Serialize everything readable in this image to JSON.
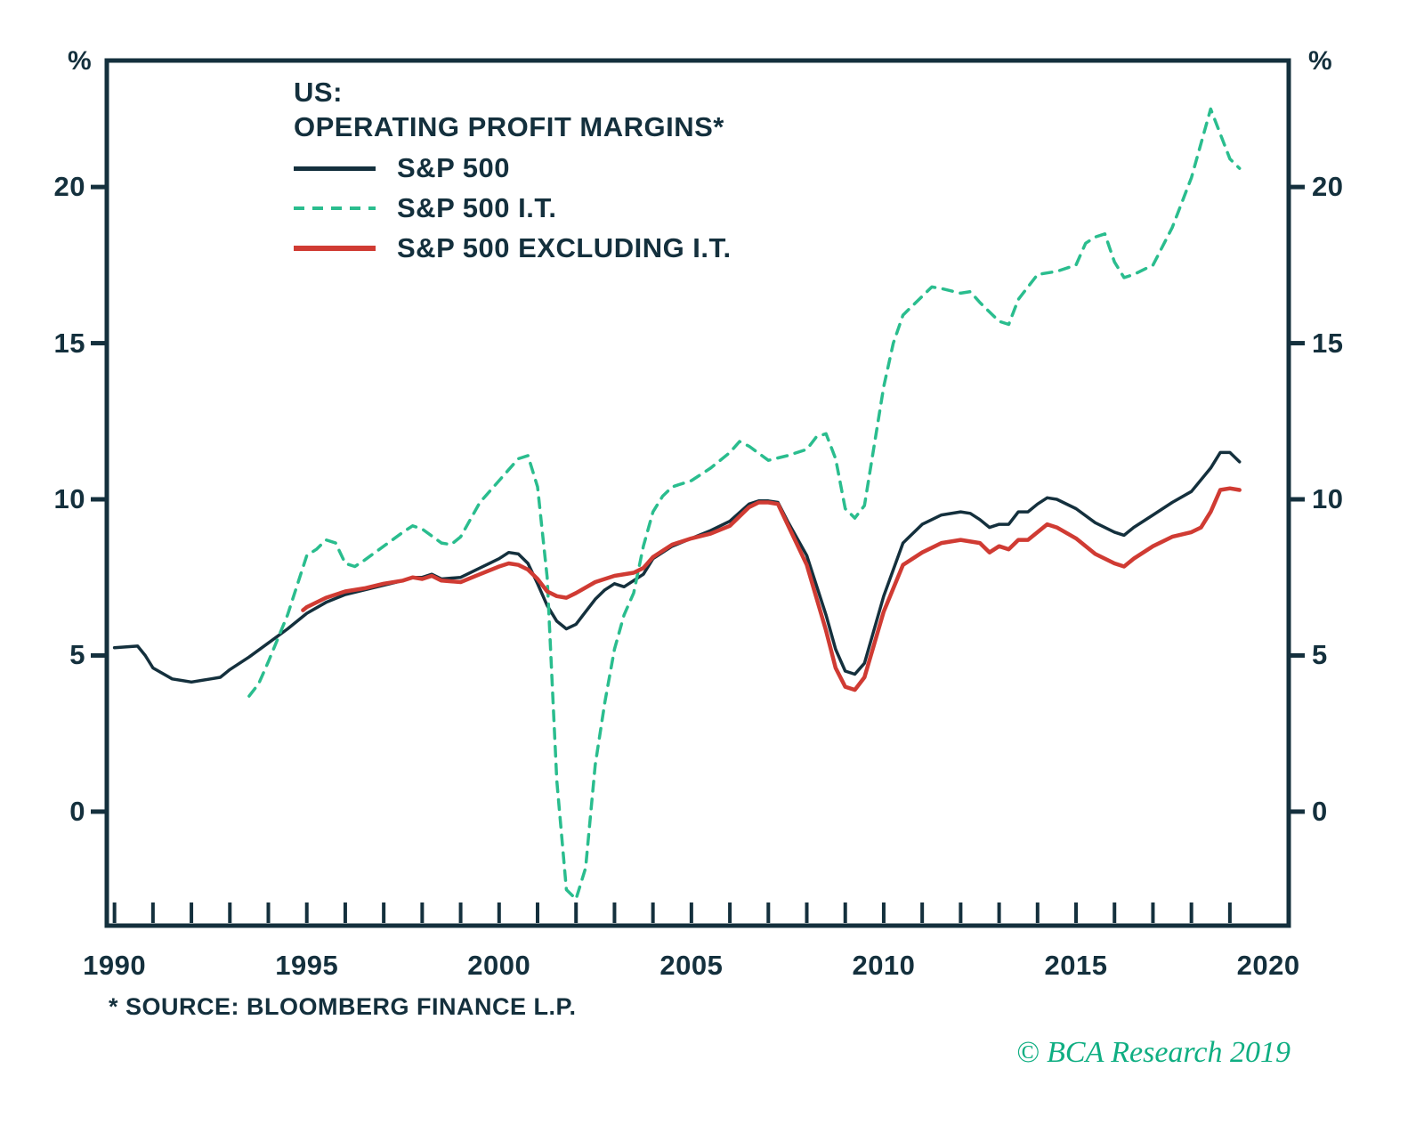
{
  "chart_data": {
    "type": "line",
    "title_lines": [
      "US:",
      "OPERATING PROFIT MARGINS*"
    ],
    "y_unit": "%",
    "footnote": "* SOURCE: BLOOMBERG FINANCE L.P.",
    "copyright": "© BCA Research 2019",
    "xlim": [
      1989.8,
      2020.53
    ],
    "ylim": [
      -3.65,
      24.05
    ],
    "x_ticks": [
      1990,
      1995,
      2000,
      2005,
      2010,
      2015,
      2020
    ],
    "x_minor_start": 1990,
    "x_minor_end": 2019,
    "y_ticks": [
      20,
      15,
      10,
      5,
      0
    ],
    "grid": false,
    "legend_position": "top-left-inside",
    "colors": {
      "axis": "#14303d",
      "navy": "#14303d",
      "green": "#2abd8e",
      "red": "#d03b33"
    },
    "series": [
      {
        "id": "sp500",
        "name": "S&P 500",
        "color": "#14303d",
        "dash": null,
        "width": 3.5,
        "points": [
          [
            1990.0,
            5.25
          ],
          [
            1990.6,
            5.3
          ],
          [
            1990.8,
            5.0
          ],
          [
            1991.0,
            4.6
          ],
          [
            1991.5,
            4.25
          ],
          [
            1992.0,
            4.15
          ],
          [
            1992.5,
            4.25
          ],
          [
            1992.75,
            4.3
          ],
          [
            1993.0,
            4.55
          ],
          [
            1993.5,
            4.95
          ],
          [
            1994.0,
            5.4
          ],
          [
            1994.5,
            5.85
          ],
          [
            1995.0,
            6.35
          ],
          [
            1995.5,
            6.7
          ],
          [
            1996.0,
            6.95
          ],
          [
            1996.5,
            7.1
          ],
          [
            1997.0,
            7.25
          ],
          [
            1997.5,
            7.4
          ],
          [
            1997.75,
            7.5
          ],
          [
            1998.0,
            7.5
          ],
          [
            1998.25,
            7.6
          ],
          [
            1998.5,
            7.45
          ],
          [
            1999.0,
            7.5
          ],
          [
            1999.5,
            7.8
          ],
          [
            2000.0,
            8.1
          ],
          [
            2000.25,
            8.3
          ],
          [
            2000.5,
            8.25
          ],
          [
            2000.75,
            7.95
          ],
          [
            2001.0,
            7.3
          ],
          [
            2001.25,
            6.6
          ],
          [
            2001.5,
            6.1
          ],
          [
            2001.75,
            5.85
          ],
          [
            2002.0,
            6.0
          ],
          [
            2002.25,
            6.4
          ],
          [
            2002.5,
            6.8
          ],
          [
            2002.75,
            7.1
          ],
          [
            2003.0,
            7.3
          ],
          [
            2003.25,
            7.2
          ],
          [
            2003.5,
            7.4
          ],
          [
            2003.75,
            7.6
          ],
          [
            2004.0,
            8.1
          ],
          [
            2004.5,
            8.5
          ],
          [
            2005.0,
            8.75
          ],
          [
            2005.5,
            9.0
          ],
          [
            2006.0,
            9.3
          ],
          [
            2006.5,
            9.85
          ],
          [
            2006.75,
            9.95
          ],
          [
            2007.0,
            9.95
          ],
          [
            2007.25,
            9.9
          ],
          [
            2007.5,
            9.3
          ],
          [
            2008.0,
            8.2
          ],
          [
            2008.5,
            6.3
          ],
          [
            2008.75,
            5.2
          ],
          [
            2009.0,
            4.5
          ],
          [
            2009.25,
            4.4
          ],
          [
            2009.5,
            4.75
          ],
          [
            2010.0,
            6.9
          ],
          [
            2010.5,
            8.6
          ],
          [
            2011.0,
            9.2
          ],
          [
            2011.5,
            9.5
          ],
          [
            2012.0,
            9.6
          ],
          [
            2012.25,
            9.55
          ],
          [
            2012.5,
            9.35
          ],
          [
            2012.75,
            9.1
          ],
          [
            2013.0,
            9.2
          ],
          [
            2013.25,
            9.2
          ],
          [
            2013.5,
            9.6
          ],
          [
            2013.75,
            9.6
          ],
          [
            2014.0,
            9.85
          ],
          [
            2014.25,
            10.05
          ],
          [
            2014.5,
            10.0
          ],
          [
            2015.0,
            9.7
          ],
          [
            2015.5,
            9.25
          ],
          [
            2016.0,
            8.95
          ],
          [
            2016.25,
            8.85
          ],
          [
            2016.5,
            9.1
          ],
          [
            2017.0,
            9.5
          ],
          [
            2017.5,
            9.9
          ],
          [
            2018.0,
            10.25
          ],
          [
            2018.5,
            11.0
          ],
          [
            2018.75,
            11.5
          ],
          [
            2019.0,
            11.5
          ],
          [
            2019.25,
            11.2
          ]
        ]
      },
      {
        "id": "sp500-it",
        "name": "S&P 500 I.T.",
        "color": "#2abd8e",
        "dash": "11 9",
        "width": 3.5,
        "points": [
          [
            1993.5,
            3.7
          ],
          [
            1993.75,
            4.1
          ],
          [
            1994.0,
            4.8
          ],
          [
            1994.5,
            6.3
          ],
          [
            1995.0,
            8.2
          ],
          [
            1995.25,
            8.4
          ],
          [
            1995.5,
            8.7
          ],
          [
            1995.75,
            8.6
          ],
          [
            1996.0,
            7.95
          ],
          [
            1996.25,
            7.85
          ],
          [
            1996.5,
            8.05
          ],
          [
            1997.0,
            8.5
          ],
          [
            1997.5,
            8.95
          ],
          [
            1997.75,
            9.15
          ],
          [
            1998.0,
            9.05
          ],
          [
            1998.5,
            8.6
          ],
          [
            1998.75,
            8.55
          ],
          [
            1999.0,
            8.8
          ],
          [
            1999.5,
            9.9
          ],
          [
            2000.0,
            10.6
          ],
          [
            2000.5,
            11.3
          ],
          [
            2000.75,
            11.4
          ],
          [
            2001.0,
            10.4
          ],
          [
            2001.25,
            7.5
          ],
          [
            2001.5,
            1.0
          ],
          [
            2001.75,
            -2.5
          ],
          [
            2002.0,
            -2.8
          ],
          [
            2002.25,
            -1.8
          ],
          [
            2002.5,
            1.5
          ],
          [
            2002.75,
            3.5
          ],
          [
            2003.0,
            5.2
          ],
          [
            2003.25,
            6.3
          ],
          [
            2003.5,
            7.0
          ],
          [
            2003.75,
            8.5
          ],
          [
            2004.0,
            9.6
          ],
          [
            2004.25,
            10.1
          ],
          [
            2004.5,
            10.4
          ],
          [
            2005.0,
            10.6
          ],
          [
            2005.5,
            11.0
          ],
          [
            2006.0,
            11.5
          ],
          [
            2006.25,
            11.85
          ],
          [
            2006.5,
            11.7
          ],
          [
            2007.0,
            11.25
          ],
          [
            2007.5,
            11.4
          ],
          [
            2008.0,
            11.6
          ],
          [
            2008.25,
            12.0
          ],
          [
            2008.5,
            12.1
          ],
          [
            2008.75,
            11.3
          ],
          [
            2009.0,
            9.7
          ],
          [
            2009.25,
            9.4
          ],
          [
            2009.5,
            9.8
          ],
          [
            2010.0,
            13.6
          ],
          [
            2010.25,
            15.0
          ],
          [
            2010.5,
            15.9
          ],
          [
            2011.0,
            16.5
          ],
          [
            2011.25,
            16.8
          ],
          [
            2011.5,
            16.75
          ],
          [
            2012.0,
            16.6
          ],
          [
            2012.25,
            16.65
          ],
          [
            2012.5,
            16.3
          ],
          [
            2012.75,
            16.0
          ],
          [
            2013.0,
            15.7
          ],
          [
            2013.25,
            15.6
          ],
          [
            2013.5,
            16.4
          ],
          [
            2013.75,
            16.8
          ],
          [
            2014.0,
            17.2
          ],
          [
            2014.5,
            17.3
          ],
          [
            2015.0,
            17.5
          ],
          [
            2015.25,
            18.2
          ],
          [
            2015.5,
            18.4
          ],
          [
            2015.75,
            18.5
          ],
          [
            2016.0,
            17.6
          ],
          [
            2016.25,
            17.1
          ],
          [
            2016.5,
            17.2
          ],
          [
            2017.0,
            17.5
          ],
          [
            2017.5,
            18.7
          ],
          [
            2018.0,
            20.3
          ],
          [
            2018.25,
            21.4
          ],
          [
            2018.5,
            22.5
          ],
          [
            2018.75,
            21.7
          ],
          [
            2019.0,
            20.9
          ],
          [
            2019.25,
            20.6
          ]
        ]
      },
      {
        "id": "sp500-ex-it",
        "name": "S&P 500 EXCLUDING I.T.",
        "color": "#d03b33",
        "dash": null,
        "width": 4.5,
        "points": [
          [
            1994.9,
            6.45
          ],
          [
            1995.0,
            6.55
          ],
          [
            1995.5,
            6.85
          ],
          [
            1996.0,
            7.05
          ],
          [
            1996.5,
            7.15
          ],
          [
            1997.0,
            7.3
          ],
          [
            1997.5,
            7.4
          ],
          [
            1997.75,
            7.5
          ],
          [
            1998.0,
            7.45
          ],
          [
            1998.25,
            7.55
          ],
          [
            1998.5,
            7.4
          ],
          [
            1999.0,
            7.35
          ],
          [
            1999.5,
            7.6
          ],
          [
            2000.0,
            7.85
          ],
          [
            2000.25,
            7.95
          ],
          [
            2000.5,
            7.9
          ],
          [
            2000.75,
            7.75
          ],
          [
            2001.0,
            7.45
          ],
          [
            2001.25,
            7.05
          ],
          [
            2001.5,
            6.9
          ],
          [
            2001.75,
            6.85
          ],
          [
            2002.0,
            7.0
          ],
          [
            2002.5,
            7.35
          ],
          [
            2003.0,
            7.55
          ],
          [
            2003.5,
            7.65
          ],
          [
            2003.75,
            7.8
          ],
          [
            2004.0,
            8.15
          ],
          [
            2004.5,
            8.55
          ],
          [
            2005.0,
            8.75
          ],
          [
            2005.5,
            8.9
          ],
          [
            2006.0,
            9.15
          ],
          [
            2006.5,
            9.75
          ],
          [
            2006.75,
            9.9
          ],
          [
            2007.0,
            9.9
          ],
          [
            2007.25,
            9.85
          ],
          [
            2007.5,
            9.2
          ],
          [
            2008.0,
            7.9
          ],
          [
            2008.5,
            5.8
          ],
          [
            2008.75,
            4.6
          ],
          [
            2009.0,
            4.0
          ],
          [
            2009.25,
            3.9
          ],
          [
            2009.5,
            4.3
          ],
          [
            2010.0,
            6.4
          ],
          [
            2010.5,
            7.9
          ],
          [
            2011.0,
            8.3
          ],
          [
            2011.5,
            8.6
          ],
          [
            2012.0,
            8.7
          ],
          [
            2012.25,
            8.65
          ],
          [
            2012.5,
            8.6
          ],
          [
            2012.75,
            8.3
          ],
          [
            2013.0,
            8.5
          ],
          [
            2013.25,
            8.4
          ],
          [
            2013.5,
            8.7
          ],
          [
            2013.75,
            8.7
          ],
          [
            2014.0,
            8.95
          ],
          [
            2014.25,
            9.2
          ],
          [
            2014.5,
            9.1
          ],
          [
            2015.0,
            8.75
          ],
          [
            2015.5,
            8.25
          ],
          [
            2016.0,
            7.95
          ],
          [
            2016.25,
            7.85
          ],
          [
            2016.5,
            8.1
          ],
          [
            2017.0,
            8.5
          ],
          [
            2017.5,
            8.8
          ],
          [
            2018.0,
            8.95
          ],
          [
            2018.25,
            9.1
          ],
          [
            2018.5,
            9.6
          ],
          [
            2018.75,
            10.3
          ],
          [
            2019.0,
            10.35
          ],
          [
            2019.25,
            10.3
          ]
        ]
      }
    ]
  }
}
